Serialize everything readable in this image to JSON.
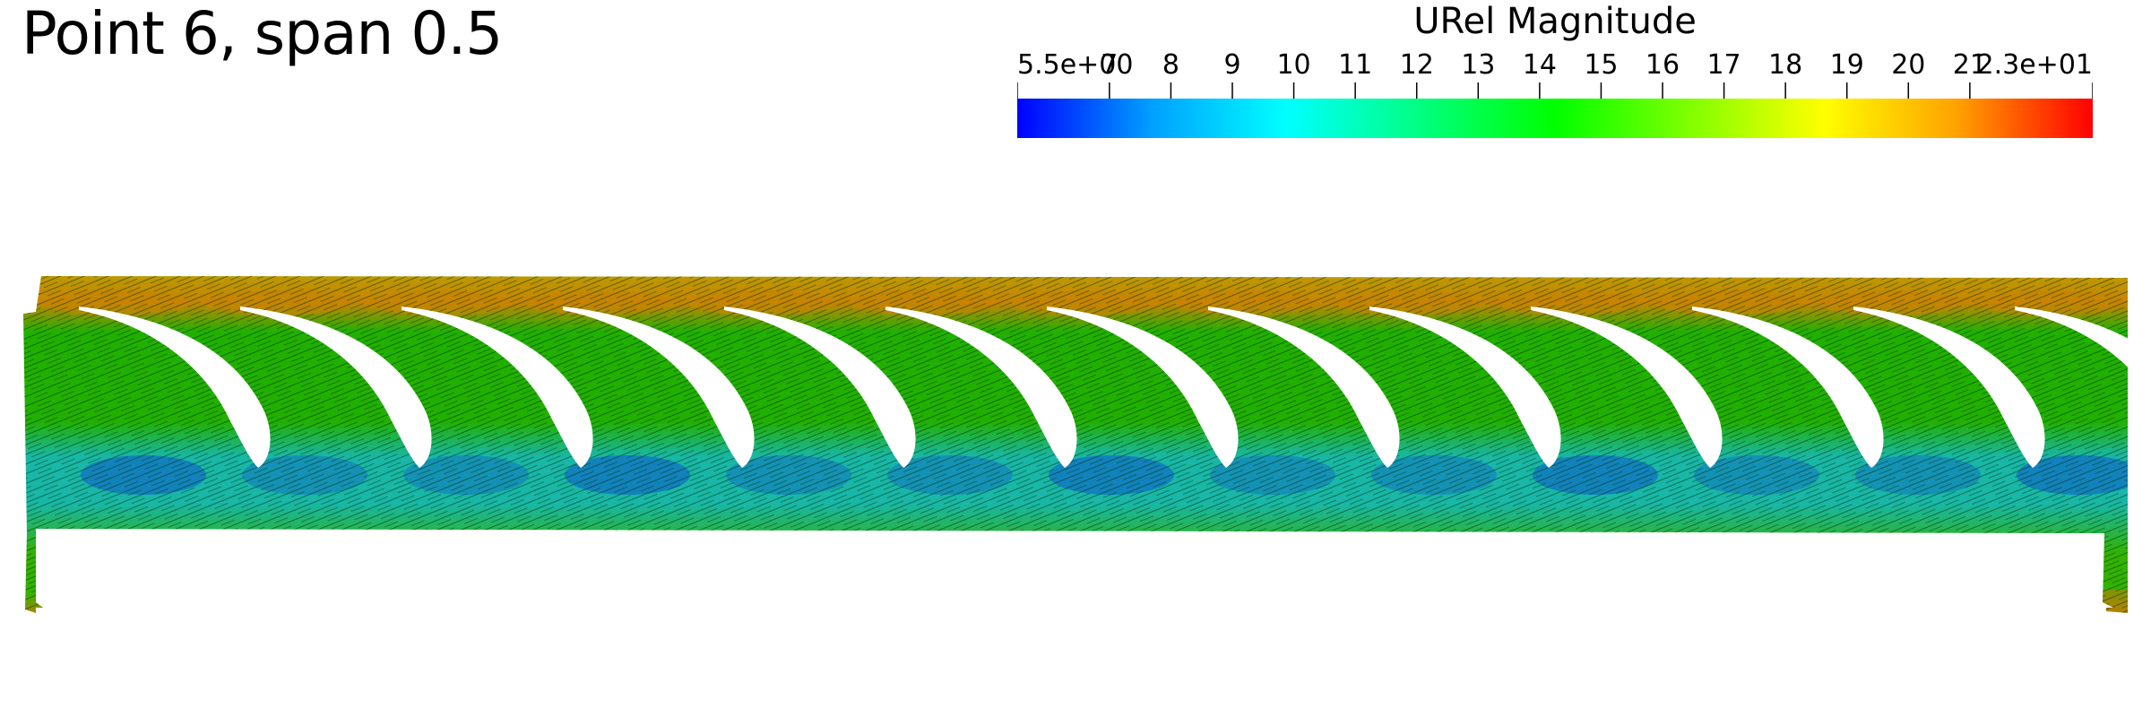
{
  "title": "Point 6, span 0.5",
  "colorbar": {
    "title": "URel Magnitude",
    "min": 5.5,
    "max": 23,
    "ticks": [
      {
        "value": 5.5,
        "label": "5.5e+00"
      },
      {
        "value": 7,
        "label": "7"
      },
      {
        "value": 8,
        "label": "8"
      },
      {
        "value": 9,
        "label": "9"
      },
      {
        "value": 10,
        "label": "10"
      },
      {
        "value": 11,
        "label": "11"
      },
      {
        "value": 12,
        "label": "12"
      },
      {
        "value": 13,
        "label": "13"
      },
      {
        "value": 14,
        "label": "14"
      },
      {
        "value": 15,
        "label": "15"
      },
      {
        "value": 16,
        "label": "16"
      },
      {
        "value": 17,
        "label": "17"
      },
      {
        "value": 18,
        "label": "18"
      },
      {
        "value": 19,
        "label": "19"
      },
      {
        "value": 20,
        "label": "20"
      },
      {
        "value": 21,
        "label": "21"
      },
      {
        "value": 23,
        "label": "2.3e+01"
      }
    ],
    "colormap": [
      "#0000ff",
      "#00a0ff",
      "#00ffff",
      "#00ff80",
      "#00ff00",
      "#80ff00",
      "#ffff00",
      "#ffa000",
      "#ff0000"
    ]
  },
  "blade_count": 13,
  "field_colors": {
    "outer_band": "#b8a500",
    "outer_hot": "#c88400",
    "passage": "#22b000",
    "core": "#18b7a8",
    "core_low": "#1066c8",
    "inner_band": "#33b200",
    "inner_hot": "#c87a00",
    "streak": "#003300"
  }
}
